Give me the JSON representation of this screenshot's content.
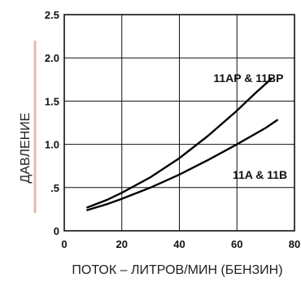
{
  "chart_data": {
    "type": "line",
    "xlabel": "ПОТОК – ЛИТРОВ/МИН (БЕНЗИН)",
    "ylabel": "ДАВЛЕНИЕ",
    "xlim": [
      0,
      80
    ],
    "ylim": [
      0,
      2.5
    ],
    "x_ticks": [
      "0",
      "20",
      "40",
      "60",
      "80"
    ],
    "y_ticks": [
      "0",
      ".5",
      "1.0",
      "1.5",
      "2.0",
      "2.5"
    ],
    "grid": true,
    "series": [
      {
        "name": "11AP & 11BP",
        "x": [
          8,
          15,
          20,
          30,
          40,
          50,
          60,
          66,
          72
        ],
        "y": [
          0.27,
          0.36,
          0.44,
          0.62,
          0.84,
          1.1,
          1.39,
          1.58,
          1.76
        ]
      },
      {
        "name": "11A & 11B",
        "x": [
          8,
          15,
          20,
          30,
          40,
          50,
          60,
          70,
          74
        ],
        "y": [
          0.24,
          0.31,
          0.37,
          0.5,
          0.65,
          0.82,
          1.0,
          1.19,
          1.28
        ]
      }
    ]
  },
  "colors": {
    "line": "#000000",
    "grid": "#111111",
    "accent": "#e8b7b3"
  }
}
